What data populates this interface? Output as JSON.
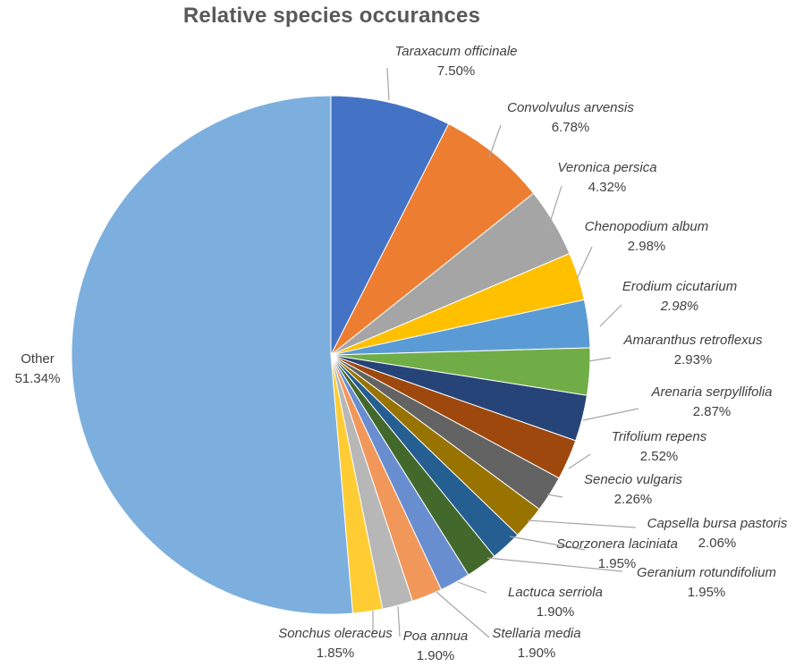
{
  "chart_data": {
    "type": "pie",
    "title": "Relative species occurances",
    "slices": [
      {
        "label": "Taraxacum officinale",
        "value": 7.5,
        "value_label": "7.50%",
        "color": "#4472C4",
        "italic": true,
        "label_side": "right"
      },
      {
        "label": "Convolvulus arvensis",
        "value": 6.78,
        "value_label": "6.78%",
        "color": "#ED7D31",
        "italic": true,
        "label_side": "right"
      },
      {
        "label": "Veronica persica",
        "value": 4.32,
        "value_label": "4.32%",
        "color": "#A5A5A5",
        "italic": true,
        "label_side": "right"
      },
      {
        "label": "Chenopodium album",
        "value": 2.98,
        "value_label": "2.98%",
        "color": "#FFC000",
        "italic": true,
        "label_side": "right"
      },
      {
        "label": "Erodium cicutarium",
        "value": 2.98,
        "value_label": "2.98%",
        "color": "#5B9BD5",
        "italic": true,
        "value_italic": true,
        "label_side": "right"
      },
      {
        "label": "Amaranthus retroflexus",
        "value": 2.93,
        "value_label": "2.93%",
        "color": "#70AD47",
        "italic": true,
        "label_side": "right"
      },
      {
        "label": "Arenaria serpyllifolia",
        "value": 2.87,
        "value_label": "2.87%",
        "color": "#264478",
        "italic": true,
        "label_side": "right"
      },
      {
        "label": "Trifolium repens",
        "value": 2.52,
        "value_label": "2.52%",
        "color": "#9E480E",
        "italic": true,
        "label_side": "right"
      },
      {
        "label": "Senecio vulgaris",
        "value": 2.26,
        "value_label": "2.26%",
        "color": "#636363",
        "italic": true,
        "label_side": "right"
      },
      {
        "label": "Capsella bursa pastoris",
        "value": 2.06,
        "value_label": "2.06%",
        "color": "#997300",
        "italic": true,
        "label_side": "right"
      },
      {
        "label": "Scorzonera laciniata",
        "value": 1.95,
        "value_label": "1.95%",
        "color": "#255E91",
        "italic": true,
        "label_side": "right"
      },
      {
        "label": "Geranium rotundifolium",
        "value": 1.95,
        "value_label": "1.95%",
        "color": "#43682B",
        "italic": true,
        "label_side": "right"
      },
      {
        "label": "Lactuca serriola",
        "value": 1.9,
        "value_label": "1.90%",
        "color": "#698ED0",
        "italic": true,
        "label_side": "right"
      },
      {
        "label": "Stellaria media",
        "value": 1.9,
        "value_label": "1.90%",
        "color": "#F1975A",
        "italic": true,
        "label_side": "right"
      },
      {
        "label": "Poa annua",
        "value": 1.9,
        "value_label": "1.90%",
        "color": "#B7B7B7",
        "italic": true,
        "label_side": "right"
      },
      {
        "label": "Sonchus oleraceus",
        "value": 1.85,
        "value_label": "1.85%",
        "color": "#FFCD33",
        "italic": true,
        "label_side": "left"
      },
      {
        "label": "Other",
        "value": 51.34,
        "value_label": "51.34%",
        "color": "#7CAFDD",
        "italic": false,
        "label_side": "left"
      }
    ],
    "legend": "none",
    "data_labels": "outside with leader lines"
  }
}
